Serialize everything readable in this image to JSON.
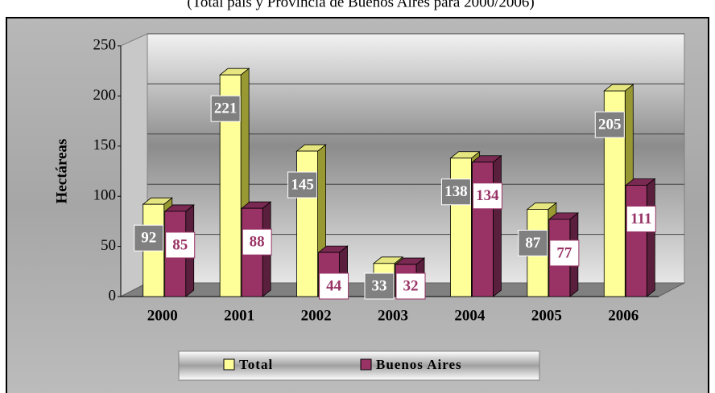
{
  "chart_data": {
    "type": "bar3d",
    "subtitle": "(Total país y Provincia de Buenos Aires para 2000/2006)",
    "y_label": "Hectáreas",
    "categories": [
      "2000",
      "2001",
      "2002",
      "2003",
      "2004",
      "2005",
      "2006"
    ],
    "series": [
      {
        "name": "Total",
        "color": "#ffff99",
        "values": [
          92,
          221,
          145,
          33,
          138,
          87,
          205
        ]
      },
      {
        "name": "Buenos Aires",
        "color": "#993366",
        "values": [
          85,
          88,
          44,
          32,
          134,
          77,
          111
        ]
      }
    ],
    "ylim": [
      0,
      250
    ],
    "yticks": [
      0,
      50,
      100,
      150,
      200,
      250
    ],
    "grid": true,
    "legend": "bottom"
  }
}
